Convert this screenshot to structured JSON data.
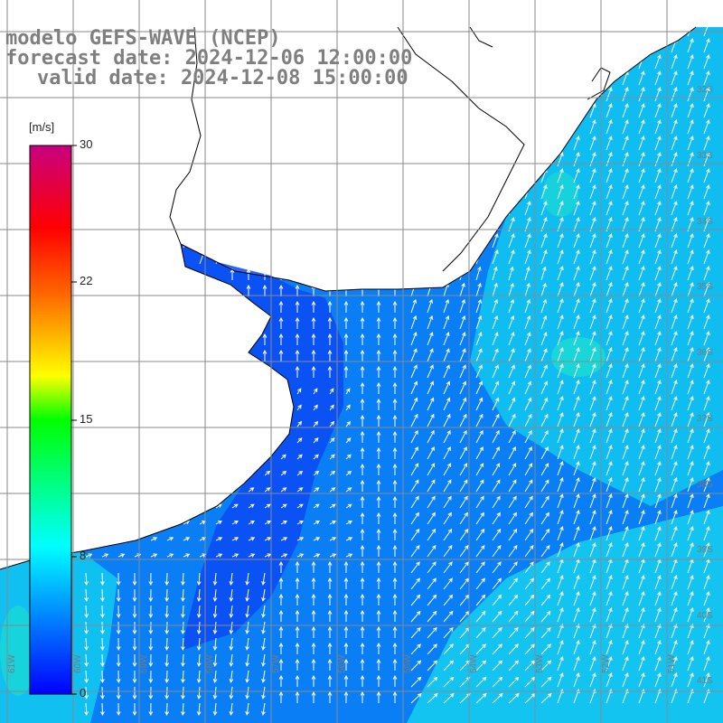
{
  "title": {
    "line1": "modelo GEFS-WAVE (NCEP)",
    "line2": "forecast date: 2024-12-06 12:00:00",
    "line3": "valid date: 2024-12-08 15:00:00"
  },
  "colorbar": {
    "units": "[m/s]",
    "ticks": [
      "30",
      "22",
      "15",
      "8",
      "0"
    ],
    "range": [
      0,
      30
    ],
    "colors": [
      "#0000ff",
      "#00aaff",
      "#00ffff",
      "#00ff00",
      "#ffff00",
      "#ff8800",
      "#ff0000",
      "#cc0088"
    ]
  },
  "map": {
    "lat_labels": [
      "32S",
      "33S",
      "34S",
      "35S",
      "36S",
      "37S",
      "38S",
      "39S",
      "40S",
      "41S"
    ],
    "lon_labels": [
      "61W",
      "60W",
      "59W",
      "58W",
      "57W",
      "56W",
      "55W",
      "54W",
      "53W",
      "52W",
      "51W"
    ],
    "land_color": "#ffffff",
    "coast_color": "#000000",
    "grid_color": "#888888",
    "arrow_color": "#ffffff"
  }
}
